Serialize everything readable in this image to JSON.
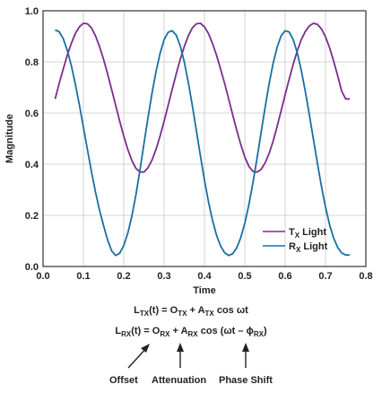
{
  "chart_data": {
    "type": "line",
    "xlabel": "Time",
    "ylabel": "Magnitude",
    "xlim": [
      0.0,
      0.8
    ],
    "ylim": [
      0.0,
      1.0
    ],
    "xticks": [
      "0.0",
      "0.1",
      "0.2",
      "0.3",
      "0.4",
      "0.5",
      "0.6",
      "0.7",
      "0.8"
    ],
    "yticks": [
      "0.0",
      "0.2",
      "0.4",
      "0.6",
      "0.8",
      "1.0"
    ],
    "grid": true,
    "legend_position": "bottom-right",
    "series": [
      {
        "name": "TX Light",
        "label_main": "T",
        "label_sub": "X",
        "label_rest": " Light",
        "color": "#7b2d8e",
        "x": [
          0.03,
          0.04,
          0.05,
          0.06,
          0.07,
          0.08,
          0.09,
          0.1,
          0.11,
          0.12,
          0.13,
          0.14,
          0.15,
          0.16,
          0.17,
          0.18,
          0.19,
          0.2,
          0.21,
          0.22,
          0.23,
          0.24,
          0.25,
          0.26,
          0.27,
          0.28,
          0.29,
          0.3,
          0.31,
          0.32,
          0.33,
          0.34,
          0.35,
          0.36,
          0.37,
          0.38,
          0.39,
          0.4,
          0.41,
          0.42,
          0.43,
          0.44,
          0.45,
          0.46,
          0.47,
          0.48,
          0.49,
          0.5,
          0.51,
          0.52,
          0.53,
          0.54,
          0.55,
          0.56,
          0.57,
          0.58,
          0.59,
          0.6,
          0.61,
          0.62,
          0.63,
          0.64,
          0.65,
          0.66,
          0.67,
          0.68,
          0.69,
          0.7,
          0.71,
          0.72,
          0.73,
          0.74,
          0.75,
          0.76
        ],
        "y": [
          0.655,
          0.716,
          0.772,
          0.826,
          0.872,
          0.911,
          0.937,
          0.951,
          0.949,
          0.933,
          0.902,
          0.86,
          0.81,
          0.753,
          0.692,
          0.63,
          0.568,
          0.51,
          0.458,
          0.415,
          0.384,
          0.37,
          0.369,
          0.386,
          0.416,
          0.458,
          0.51,
          0.568,
          0.63,
          0.692,
          0.753,
          0.81,
          0.86,
          0.902,
          0.933,
          0.949,
          0.951,
          0.937,
          0.911,
          0.872,
          0.826,
          0.772,
          0.716,
          0.655,
          0.593,
          0.533,
          0.477,
          0.428,
          0.392,
          0.372,
          0.369,
          0.379,
          0.404,
          0.441,
          0.489,
          0.547,
          0.609,
          0.672,
          0.733,
          0.791,
          0.843,
          0.887,
          0.919,
          0.941,
          0.951,
          0.947,
          0.929,
          0.898,
          0.856,
          0.804,
          0.747,
          0.686,
          0.655,
          0.655
        ]
      },
      {
        "name": "RX Light",
        "label_main": "R",
        "label_sub": "X",
        "label_rest": " Light",
        "color": "#1a6fa0",
        "x": [
          0.03,
          0.04,
          0.05,
          0.06,
          0.07,
          0.08,
          0.09,
          0.1,
          0.11,
          0.12,
          0.13,
          0.14,
          0.15,
          0.16,
          0.17,
          0.18,
          0.19,
          0.2,
          0.21,
          0.22,
          0.23,
          0.24,
          0.25,
          0.26,
          0.27,
          0.28,
          0.29,
          0.3,
          0.31,
          0.32,
          0.33,
          0.34,
          0.35,
          0.36,
          0.37,
          0.38,
          0.39,
          0.4,
          0.41,
          0.42,
          0.43,
          0.44,
          0.45,
          0.46,
          0.47,
          0.48,
          0.49,
          0.5,
          0.51,
          0.52,
          0.53,
          0.54,
          0.55,
          0.56,
          0.57,
          0.58,
          0.59,
          0.6,
          0.61,
          0.62,
          0.63,
          0.64,
          0.65,
          0.66,
          0.67,
          0.68,
          0.69,
          0.7,
          0.71,
          0.72,
          0.73,
          0.74,
          0.75,
          0.76
        ],
        "y": [
          0.925,
          0.918,
          0.891,
          0.846,
          0.786,
          0.714,
          0.632,
          0.545,
          0.457,
          0.371,
          0.291,
          0.22,
          0.16,
          0.104,
          0.061,
          0.043,
          0.052,
          0.082,
          0.13,
          0.196,
          0.279,
          0.375,
          0.479,
          0.581,
          0.677,
          0.762,
          0.833,
          0.887,
          0.916,
          0.922,
          0.905,
          0.863,
          0.8,
          0.72,
          0.629,
          0.532,
          0.433,
          0.338,
          0.253,
          0.18,
          0.122,
          0.08,
          0.054,
          0.043,
          0.05,
          0.073,
          0.113,
          0.169,
          0.241,
          0.326,
          0.42,
          0.52,
          0.619,
          0.712,
          0.793,
          0.857,
          0.902,
          0.922,
          0.917,
          0.887,
          0.836,
          0.767,
          0.684,
          0.593,
          0.498,
          0.403,
          0.313,
          0.232,
          0.164,
          0.112,
          0.075,
          0.053,
          0.045,
          0.045
        ]
      }
    ]
  },
  "equations": {
    "tx": {
      "l_main": "L",
      "l_sub": "TX",
      "mid1": "(t) = O",
      "o_sub": "TX",
      "mid2": " + A",
      "a_sub": "TX",
      "tail": " cos ωt"
    },
    "rx": {
      "l_main": "L",
      "l_sub": "RX",
      "mid1": "(t) = O",
      "o_sub": "RX",
      "mid2": " + A",
      "a_sub": "RX",
      "tail1": " cos (ωt – ϕ",
      "phi_sub": "RX",
      "tail2": ")"
    }
  },
  "annotations": {
    "offset": "Offset",
    "attenuation": "Attenuation",
    "phase_shift": "Phase Shift"
  }
}
